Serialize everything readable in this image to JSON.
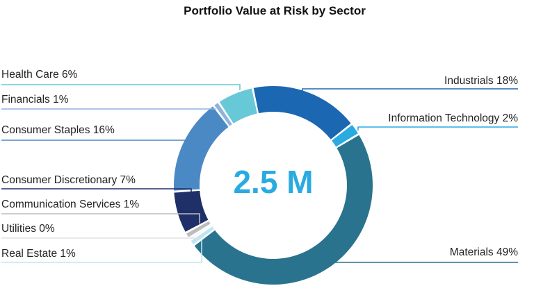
{
  "chart_data": {
    "type": "pie",
    "variant": "donut",
    "title": "Portfolio Value at Risk by Sector",
    "center_label": "2.5 M",
    "slices": [
      {
        "label": "Industrials 18%",
        "name": "Industrials",
        "value": 18,
        "color": "#1b67b1"
      },
      {
        "label": "Information Technology 2%",
        "name": "Information Technology",
        "value": 2,
        "color": "#29abe2"
      },
      {
        "label": "Materials 49%",
        "name": "Materials",
        "value": 49,
        "color": "#2a738e"
      },
      {
        "label": "Real Estate 1%",
        "name": "Real Estate",
        "value": 1,
        "color": "#bfe6f2"
      },
      {
        "label": "Utilities 0%",
        "name": "Utilities",
        "value": 0,
        "color": "#e0e0e0"
      },
      {
        "label": "Communication Services 1%",
        "name": "Communication Services",
        "value": 1,
        "color": "#bdbdbd"
      },
      {
        "label": "Consumer Discretionary 7%",
        "name": "Consumer Discretionary",
        "value": 7,
        "color": "#1f3068"
      },
      {
        "label": "Consumer Staples 16%",
        "name": "Consumer Staples",
        "value": 16,
        "color": "#4a89c4"
      },
      {
        "label": "Financials 1%",
        "name": "Financials",
        "value": 1,
        "color": "#8fb4dc"
      },
      {
        "label": "Health Care 6%",
        "name": "Health Care",
        "value": 6,
        "color": "#67c8d8"
      }
    ]
  }
}
